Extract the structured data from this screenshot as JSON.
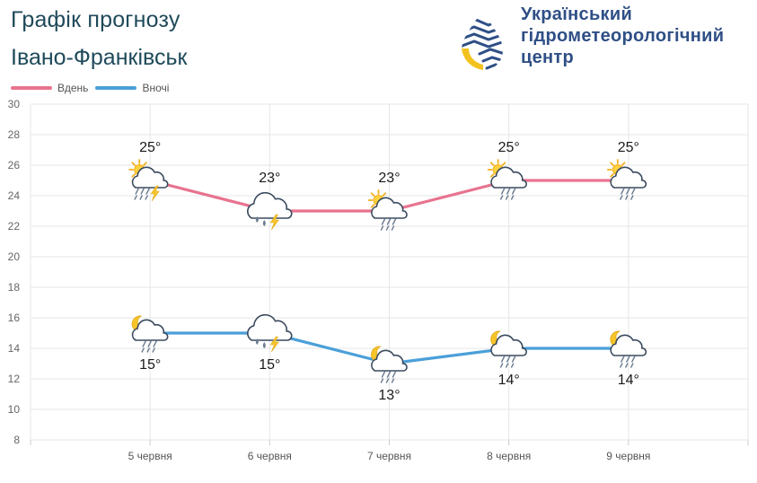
{
  "header": {
    "title": "Графік прогнозу",
    "city": "Івано-Франківськ"
  },
  "organization": {
    "line1": "Український",
    "line2": "гідрометеорологічний",
    "line3": "центр"
  },
  "colors": {
    "day": "#e8738f",
    "night": "#4a9fd8",
    "grid": "#e6e6e6",
    "text": "#1f4a5a",
    "brand": "#2f4f86"
  },
  "chart_data": {
    "type": "line",
    "categories": [
      "5 червня",
      "6 червня",
      "7 червня",
      "8 червня",
      "9 червня"
    ],
    "series": [
      {
        "name": "Вдень",
        "values": [
          25,
          23,
          23,
          25,
          25
        ],
        "labels": [
          "25°",
          "23°",
          "23°",
          "25°",
          "25°"
        ],
        "icons": [
          "sun-cloud-thunder-rain-icon",
          "cloud-thunder-rain-icon",
          "sun-cloud-rain-icon",
          "sun-cloud-rain-icon",
          "sun-cloud-rain-icon"
        ]
      },
      {
        "name": "Вночі",
        "values": [
          15,
          15,
          13,
          14,
          14
        ],
        "labels": [
          "15°",
          "15°",
          "13°",
          "14°",
          "14°"
        ],
        "icons": [
          "moon-cloud-rain-icon",
          "cloud-thunder-rain-icon",
          "moon-cloud-rain-icon",
          "moon-cloud-rain-icon",
          "moon-cloud-rain-icon"
        ]
      }
    ],
    "y_ticks": [
      "30",
      "28",
      "26",
      "24",
      "22",
      "20",
      "18",
      "16",
      "14",
      "12",
      "10",
      "8"
    ],
    "ylim": [
      8,
      30
    ],
    "grid": true,
    "legend": "top-left"
  }
}
